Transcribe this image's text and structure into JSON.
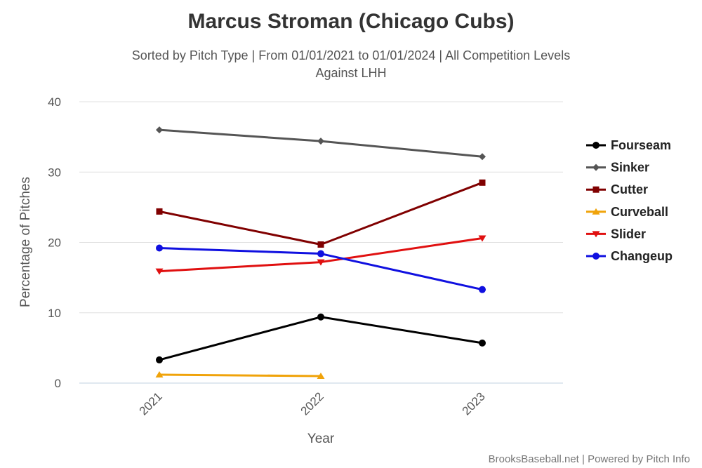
{
  "chart_data": {
    "type": "line",
    "title": "Marcus Stroman (Chicago Cubs)",
    "subtitle": [
      "Sorted by Pitch Type | From 01/01/2021 to 01/01/2024 | All Competition Levels",
      "Against LHH"
    ],
    "xlabel": "Year",
    "ylabel": "Percentage of Pitches",
    "categories": [
      "2021",
      "2022",
      "2023"
    ],
    "ylim": [
      0,
      40
    ],
    "yticks": [
      0,
      10,
      20,
      30,
      40
    ],
    "grid": true,
    "legend_position": "right",
    "series": [
      {
        "name": "Fourseam",
        "color": "#000000",
        "marker": "circle",
        "values": [
          3.3,
          9.4,
          5.7
        ]
      },
      {
        "name": "Sinker",
        "color": "#555555",
        "marker": "diamond",
        "values": [
          36.0,
          34.4,
          32.2
        ]
      },
      {
        "name": "Cutter",
        "color": "#800000",
        "marker": "square",
        "values": [
          24.4,
          19.7,
          28.5
        ]
      },
      {
        "name": "Curveball",
        "color": "#f0a30a",
        "marker": "triangle-up",
        "values": [
          1.2,
          1.0,
          null
        ]
      },
      {
        "name": "Slider",
        "color": "#e01010",
        "marker": "triangle-down",
        "values": [
          15.9,
          17.2,
          20.6
        ]
      },
      {
        "name": "Changeup",
        "color": "#1010e0",
        "marker": "circle",
        "values": [
          19.2,
          18.4,
          13.3
        ]
      }
    ],
    "credit": "BrooksBaseball.net | Powered by Pitch Info"
  }
}
